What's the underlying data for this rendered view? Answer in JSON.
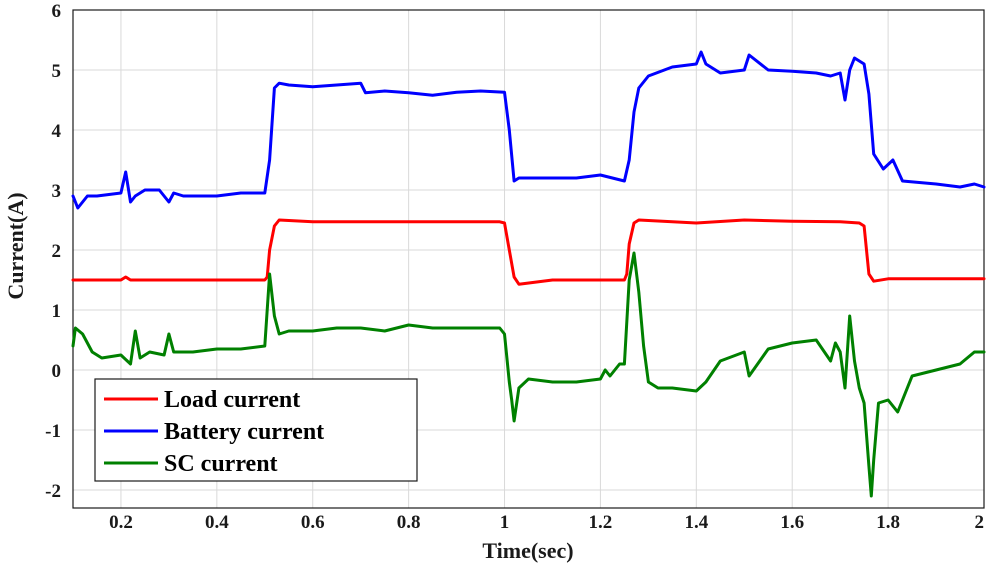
{
  "chart_data": {
    "type": "line",
    "title": "",
    "xlabel": "Time(sec)",
    "ylabel": "Current(A)",
    "xlim": [
      0.1,
      2.0
    ],
    "ylim": [
      -2.3,
      6.0
    ],
    "xticks": [
      0.2,
      0.4,
      0.6,
      0.8,
      1.0,
      1.2,
      1.4,
      1.6,
      1.8,
      2.0
    ],
    "xtick_labels": [
      "0.2",
      "0.4",
      "0.6",
      "0.8",
      "1",
      "1.2",
      "1.4",
      "1.6",
      "1.8",
      "2"
    ],
    "yticks": [
      -2,
      -1,
      0,
      1,
      2,
      3,
      4,
      5,
      6
    ],
    "ytick_labels": [
      "-2",
      "-1",
      "0",
      "1",
      "2",
      "3",
      "4",
      "5",
      "6"
    ],
    "grid": true,
    "legend_position": "bottom-left",
    "series": [
      {
        "name": "Load current",
        "color": "#ff0000",
        "x": [
          0.1,
          0.2,
          0.21,
          0.22,
          0.3,
          0.4,
          0.5,
          0.505,
          0.51,
          0.52,
          0.53,
          0.6,
          0.7,
          0.8,
          0.9,
          0.99,
          1.0,
          1.01,
          1.02,
          1.03,
          1.1,
          1.2,
          1.25,
          1.255,
          1.26,
          1.27,
          1.28,
          1.4,
          1.5,
          1.6,
          1.7,
          1.74,
          1.75,
          1.755,
          1.76,
          1.77,
          1.8,
          1.9,
          2.0
        ],
        "y": [
          1.5,
          1.5,
          1.55,
          1.5,
          1.5,
          1.5,
          1.5,
          1.55,
          2.0,
          2.4,
          2.5,
          2.47,
          2.47,
          2.47,
          2.47,
          2.47,
          2.45,
          2.0,
          1.55,
          1.43,
          1.5,
          1.5,
          1.5,
          1.6,
          2.1,
          2.45,
          2.5,
          2.45,
          2.5,
          2.48,
          2.47,
          2.45,
          2.4,
          2.0,
          1.6,
          1.48,
          1.52,
          1.52,
          1.52
        ]
      },
      {
        "name": "Battery current",
        "color": "#0000ff",
        "x": [
          0.1,
          0.11,
          0.13,
          0.15,
          0.2,
          0.21,
          0.22,
          0.23,
          0.25,
          0.28,
          0.3,
          0.31,
          0.33,
          0.4,
          0.45,
          0.5,
          0.51,
          0.52,
          0.53,
          0.55,
          0.6,
          0.65,
          0.7,
          0.71,
          0.75,
          0.8,
          0.85,
          0.9,
          0.95,
          1.0,
          1.01,
          1.02,
          1.03,
          1.1,
          1.15,
          1.2,
          1.25,
          1.26,
          1.27,
          1.28,
          1.3,
          1.35,
          1.4,
          1.41,
          1.42,
          1.45,
          1.5,
          1.51,
          1.55,
          1.6,
          1.65,
          1.68,
          1.7,
          1.71,
          1.72,
          1.73,
          1.75,
          1.76,
          1.77,
          1.79,
          1.81,
          1.83,
          1.9,
          1.95,
          1.98,
          2.0
        ],
        "y": [
          2.9,
          2.7,
          2.9,
          2.9,
          2.95,
          3.3,
          2.8,
          2.9,
          3.0,
          3.0,
          2.8,
          2.95,
          2.9,
          2.9,
          2.95,
          2.95,
          3.5,
          4.7,
          4.78,
          4.75,
          4.72,
          4.75,
          4.78,
          4.62,
          4.65,
          4.62,
          4.58,
          4.63,
          4.65,
          4.63,
          4.0,
          3.15,
          3.2,
          3.2,
          3.2,
          3.25,
          3.15,
          3.5,
          4.3,
          4.7,
          4.9,
          5.05,
          5.1,
          5.3,
          5.1,
          4.95,
          5.0,
          5.25,
          5.0,
          4.98,
          4.95,
          4.9,
          4.95,
          4.5,
          5.0,
          5.2,
          5.1,
          4.6,
          3.6,
          3.35,
          3.5,
          3.15,
          3.1,
          3.05,
          3.1,
          3.05
        ]
      },
      {
        "name": "SC current",
        "color": "#008000",
        "x": [
          0.1,
          0.105,
          0.12,
          0.14,
          0.16,
          0.2,
          0.22,
          0.23,
          0.24,
          0.26,
          0.29,
          0.3,
          0.31,
          0.32,
          0.35,
          0.4,
          0.45,
          0.5,
          0.51,
          0.52,
          0.53,
          0.55,
          0.6,
          0.65,
          0.7,
          0.75,
          0.8,
          0.85,
          0.9,
          0.95,
          0.99,
          1.0,
          1.01,
          1.015,
          1.02,
          1.03,
          1.05,
          1.1,
          1.15,
          1.2,
          1.21,
          1.22,
          1.24,
          1.25,
          1.26,
          1.27,
          1.28,
          1.29,
          1.3,
          1.32,
          1.35,
          1.4,
          1.42,
          1.45,
          1.5,
          1.51,
          1.55,
          1.6,
          1.65,
          1.68,
          1.69,
          1.7,
          1.71,
          1.72,
          1.73,
          1.74,
          1.75,
          1.76,
          1.765,
          1.77,
          1.78,
          1.8,
          1.82,
          1.85,
          1.9,
          1.95,
          1.98,
          2.0
        ],
        "y": [
          0.4,
          0.7,
          0.6,
          0.3,
          0.2,
          0.25,
          0.1,
          0.65,
          0.2,
          0.3,
          0.25,
          0.6,
          0.3,
          0.3,
          0.3,
          0.35,
          0.35,
          0.4,
          1.6,
          0.9,
          0.6,
          0.65,
          0.65,
          0.7,
          0.7,
          0.65,
          0.75,
          0.7,
          0.7,
          0.7,
          0.7,
          0.6,
          -0.2,
          -0.5,
          -0.85,
          -0.3,
          -0.15,
          -0.2,
          -0.2,
          -0.15,
          0.0,
          -0.1,
          0.1,
          0.1,
          1.5,
          1.95,
          1.3,
          0.4,
          -0.2,
          -0.3,
          -0.3,
          -0.35,
          -0.2,
          0.15,
          0.3,
          -0.1,
          0.35,
          0.45,
          0.5,
          0.15,
          0.45,
          0.3,
          -0.3,
          0.9,
          0.15,
          -0.3,
          -0.55,
          -1.6,
          -2.1,
          -1.5,
          -0.55,
          -0.5,
          -0.7,
          -0.1,
          0.0,
          0.1,
          0.3,
          0.3
        ]
      }
    ]
  }
}
